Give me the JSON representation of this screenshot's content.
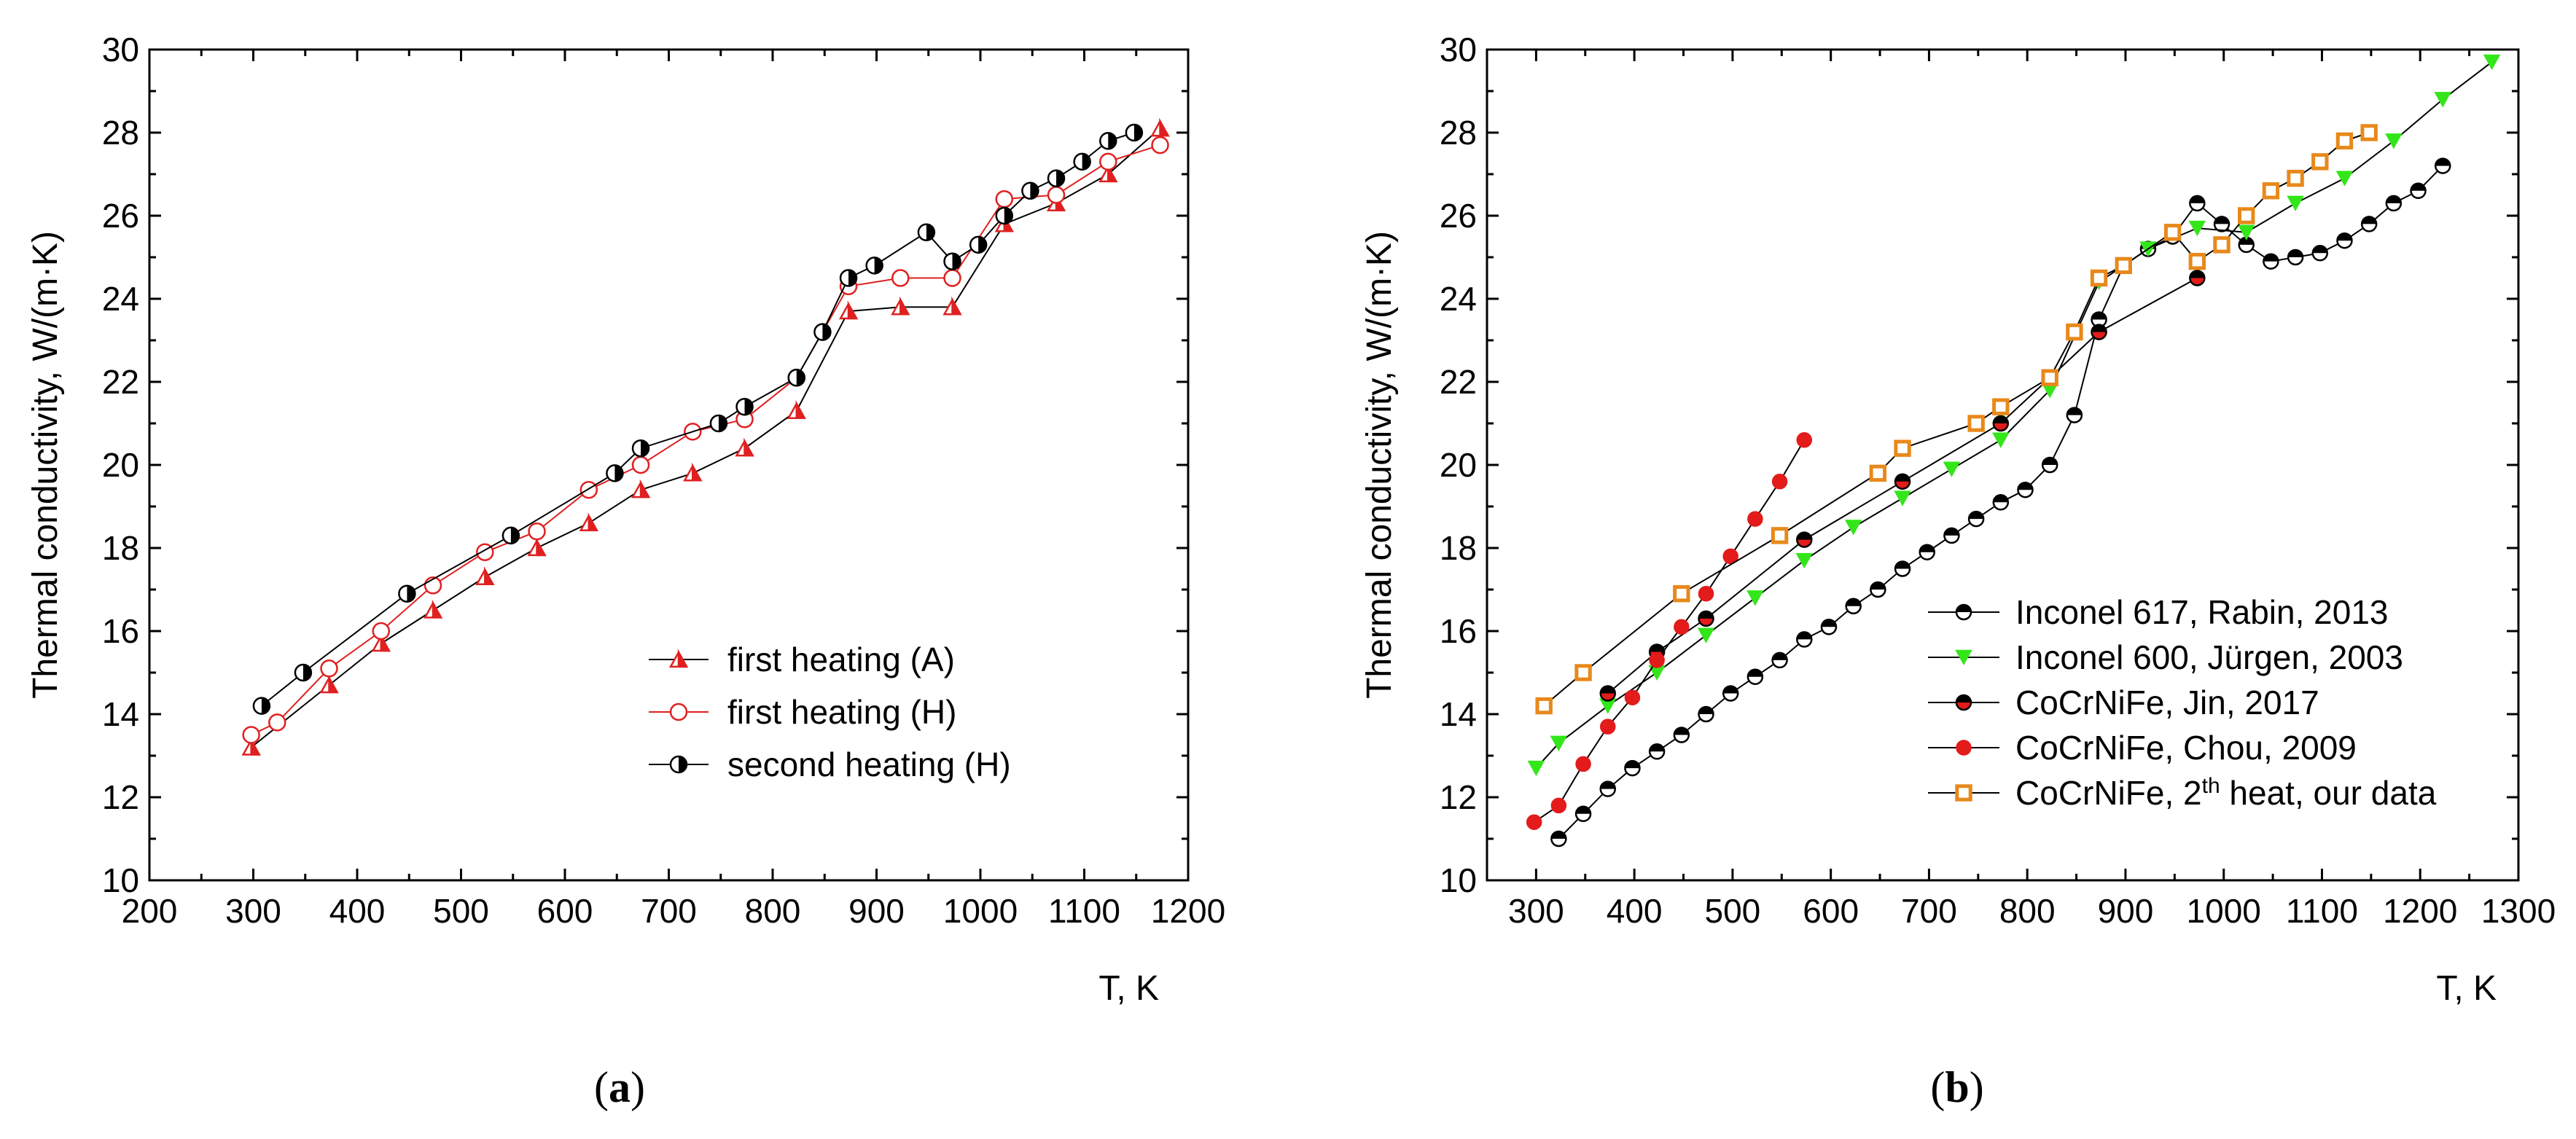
{
  "chart_data": [
    {
      "type": "line",
      "panel_label": "(a)",
      "panel_letter": "a",
      "xlabel": "T, K",
      "ylabel": "Thermal conductivity, W/(m·K)",
      "xlim": [
        200,
        1200
      ],
      "ylim": [
        10,
        30
      ],
      "x_ticks": [
        200,
        300,
        400,
        500,
        600,
        700,
        800,
        900,
        1000,
        1100,
        1200
      ],
      "y_ticks": [
        10,
        12,
        14,
        16,
        18,
        20,
        22,
        24,
        26,
        28,
        30
      ],
      "legend_position": "lower-right",
      "series": [
        {
          "name": "first heating (A)",
          "marker": "triangle-half",
          "color": "#e02020",
          "x": [
            298,
            373,
            423,
            473,
            523,
            573,
            623,
            673,
            723,
            773,
            823,
            873,
            923,
            973,
            1023,
            1073,
            1123,
            1173
          ],
          "y": [
            13.2,
            14.7,
            15.7,
            16.5,
            17.3,
            18.0,
            18.6,
            19.4,
            19.8,
            20.4,
            21.3,
            23.7,
            23.8,
            23.8,
            25.8,
            26.3,
            27.0,
            28.1
          ]
        },
        {
          "name": "first heating (H)",
          "marker": "open-circle",
          "color": "#e02020",
          "x": [
            298,
            323,
            373,
            423,
            473,
            523,
            573,
            623,
            673,
            723,
            773,
            823,
            873,
            923,
            973,
            1023,
            1073,
            1123,
            1173
          ],
          "y": [
            13.5,
            13.8,
            15.1,
            16.0,
            17.1,
            17.9,
            18.4,
            19.4,
            20.0,
            20.8,
            21.1,
            22.1,
            24.3,
            24.5,
            24.5,
            26.4,
            26.5,
            27.3,
            27.7
          ]
        },
        {
          "name": "second heating (H)",
          "marker": "half-circle",
          "color": "#000000",
          "x": [
            308,
            348,
            448,
            548,
            648,
            673,
            748,
            773,
            823,
            848,
            873,
            898,
            948,
            973,
            998,
            1023,
            1048,
            1073,
            1098,
            1123,
            1148
          ],
          "y": [
            14.2,
            15.0,
            16.9,
            18.3,
            19.8,
            20.4,
            21.0,
            21.4,
            22.1,
            23.2,
            24.5,
            24.8,
            25.6,
            24.9,
            25.3,
            26.0,
            26.6,
            26.9,
            27.3,
            27.8,
            28.0
          ]
        }
      ]
    },
    {
      "type": "line",
      "panel_label": "(b)",
      "panel_letter": "b",
      "xlabel": "T, K",
      "ylabel": "Thermal conductivity, W/(m·K)",
      "xlim": [
        250,
        1300
      ],
      "ylim": [
        10,
        30
      ],
      "x_ticks": [
        300,
        400,
        500,
        600,
        700,
        800,
        900,
        1000,
        1100,
        1200,
        1300
      ],
      "y_ticks": [
        10,
        12,
        14,
        16,
        18,
        20,
        22,
        24,
        26,
        28,
        30
      ],
      "legend_position": "lower-right",
      "series": [
        {
          "name": "Inconel 617, Rabin, 2013",
          "marker": "half-circle-horizontal",
          "color": "#000000",
          "x": [
            323,
            348,
            373,
            398,
            423,
            448,
            473,
            498,
            523,
            548,
            573,
            598,
            623,
            648,
            673,
            698,
            723,
            748,
            773,
            798,
            823,
            848,
            873,
            898,
            923,
            948,
            973,
            998,
            1023,
            1048,
            1073,
            1098,
            1123,
            1148,
            1173,
            1198,
            1223
          ],
          "y": [
            11.0,
            11.6,
            12.2,
            12.7,
            13.1,
            13.5,
            14.0,
            14.5,
            14.9,
            15.3,
            15.8,
            16.1,
            16.6,
            17.0,
            17.5,
            17.9,
            18.3,
            18.7,
            19.1,
            19.4,
            20.0,
            21.2,
            23.5,
            24.8,
            25.2,
            25.5,
            26.3,
            25.8,
            25.3,
            24.9,
            25.0,
            25.1,
            25.4,
            25.8,
            26.3,
            26.6,
            27.2
          ]
        },
        {
          "name": "Inconel 600, Jürgen, 2003",
          "marker": "triangle-down",
          "color": "#33e61a",
          "x": [
            300,
            323,
            373,
            423,
            473,
            523,
            573,
            623,
            673,
            723,
            773,
            823,
            873,
            923,
            973,
            1023,
            1073,
            1123,
            1173,
            1223,
            1273
          ],
          "y": [
            12.7,
            13.3,
            14.2,
            15.0,
            15.9,
            16.8,
            17.7,
            18.5,
            19.2,
            19.9,
            20.6,
            21.8,
            24.4,
            25.2,
            25.7,
            25.6,
            26.3,
            26.9,
            27.8,
            28.8,
            29.7
          ]
        },
        {
          "name": "CoCrNiFe, Jin, 2017",
          "marker": "half-circle-red",
          "color": "#000000",
          "x": [
            373,
            423,
            473,
            573,
            673,
            773,
            873,
            973
          ],
          "y": [
            14.5,
            15.5,
            16.3,
            18.2,
            19.6,
            21.0,
            23.2,
            24.5
          ]
        },
        {
          "name": "CoCrNiFe, Chou, 2009",
          "marker": "filled-circle",
          "color": "#e31b1b",
          "x": [
            298,
            323,
            348,
            373,
            398,
            423,
            448,
            473,
            498,
            523,
            548,
            573
          ],
          "y": [
            11.4,
            11.8,
            12.8,
            13.7,
            14.4,
            15.3,
            16.1,
            16.9,
            17.8,
            18.7,
            19.6,
            20.6
          ]
        },
        {
          "name": "CoCrNiFe, 2th heat, our data",
          "marker": "open-square",
          "color": "#e8891a",
          "x": [
            308,
            348,
            448,
            548,
            648,
            673,
            748,
            773,
            823,
            848,
            873,
            898,
            948,
            973,
            998,
            1023,
            1048,
            1073,
            1098,
            1123,
            1148
          ],
          "y": [
            14.2,
            15.0,
            16.9,
            18.3,
            19.8,
            20.4,
            21.0,
            21.4,
            22.1,
            23.2,
            24.5,
            24.8,
            25.6,
            24.9,
            25.3,
            26.0,
            26.6,
            26.9,
            27.3,
            27.8,
            28.0
          ]
        }
      ]
    }
  ]
}
